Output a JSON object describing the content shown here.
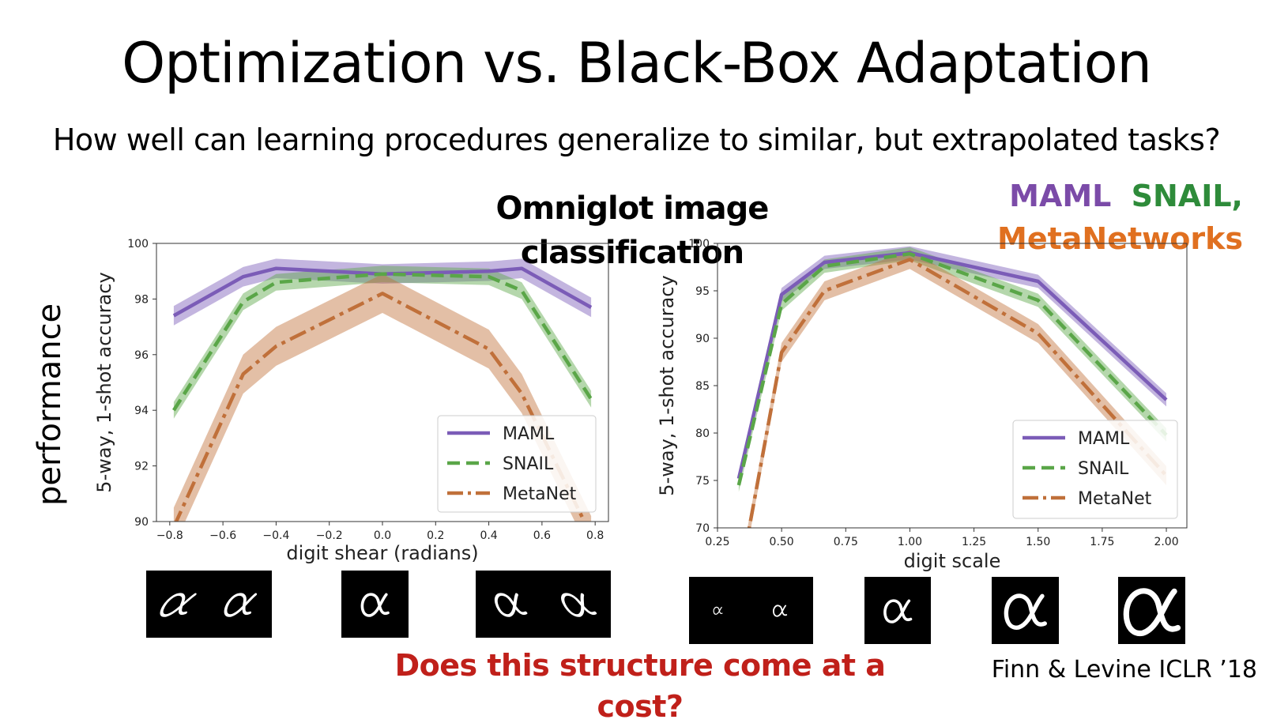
{
  "slide": {
    "title": "Optimization vs. Black-Box Adaptation",
    "subtitle": "How well can learning procedures generalize to similar, but extrapolated tasks?",
    "section_heading": "Omniglot image classification",
    "performance_label": "performance",
    "methods_legend": {
      "maml": "MAML",
      "snail": "SNAIL,",
      "metanetworks": "MetaNetworks"
    },
    "bottom_question": "Does this structure come at a cost?",
    "citation": "Finn & Levine ICLR ’18"
  },
  "colors": {
    "maml": "#7b5cb7",
    "snail": "#5aa648",
    "metanet": "#c0703a",
    "heading_purple": "#7b4ba8",
    "heading_green": "#2e8b3a",
    "heading_orange": "#e07020",
    "question_red": "#c0201a"
  },
  "icons": [
    "alpha-glyph-thumbnail"
  ],
  "chart_data": [
    {
      "type": "line",
      "xlabel": "digit shear (radians)",
      "ylabel": "5-way, 1-shot accuracy",
      "xlim": [
        -0.85,
        0.85
      ],
      "ylim": [
        90,
        100
      ],
      "xticks": [
        -0.8,
        -0.6,
        -0.4,
        -0.2,
        0.0,
        0.2,
        0.4,
        0.6,
        0.8
      ],
      "xtick_labels": [
        "−0.8",
        "−0.6",
        "−0.4",
        "−0.2",
        "0.0",
        "0.2",
        "0.4",
        "0.6",
        "0.8"
      ],
      "yticks": [
        90,
        92,
        94,
        96,
        98,
        100
      ],
      "ytick_labels": [
        "90",
        "92",
        "94",
        "96",
        "98",
        "100"
      ],
      "legend_position": "lower-right",
      "x": [
        -0.785,
        -0.524,
        -0.4,
        0.0,
        0.4,
        0.524,
        0.785
      ],
      "series": [
        {
          "name": "MAML",
          "key": "maml",
          "style": "solid",
          "values": [
            97.4,
            98.8,
            99.1,
            98.9,
            99.0,
            99.1,
            97.7
          ],
          "band": 0.35
        },
        {
          "name": "SNAIL",
          "key": "snail",
          "style": "dashed",
          "values": [
            94.0,
            97.9,
            98.6,
            98.9,
            98.8,
            98.3,
            94.4
          ],
          "band": 0.3
        },
        {
          "name": "MetaNet",
          "key": "metanet",
          "style": "dashdot",
          "values": [
            89.8,
            95.3,
            96.3,
            98.2,
            96.2,
            94.6,
            89.5
          ],
          "band": 0.7
        }
      ]
    },
    {
      "type": "line",
      "xlabel": "digit scale",
      "ylabel": "5-way, 1-shot accuracy",
      "xlim": [
        0.25,
        2.08
      ],
      "ylim": [
        70,
        100
      ],
      "xticks": [
        0.25,
        0.5,
        0.75,
        1.0,
        1.25,
        1.5,
        1.75,
        2.0
      ],
      "xtick_labels": [
        "0.25",
        "0.50",
        "0.75",
        "1.00",
        "1.25",
        "1.50",
        "1.75",
        "2.00"
      ],
      "yticks": [
        70,
        75,
        80,
        85,
        90,
        95,
        100
      ],
      "ytick_labels": [
        "70",
        "75",
        "80",
        "85",
        "90",
        "95",
        "100"
      ],
      "legend_position": "lower-right",
      "x": [
        0.333,
        0.5,
        0.667,
        1.0,
        1.5,
        2.0
      ],
      "series": [
        {
          "name": "MAML",
          "key": "maml",
          "style": "solid",
          "values": [
            75.2,
            94.6,
            98.0,
            99.0,
            96.0,
            83.5
          ],
          "band": 0.7
        },
        {
          "name": "SNAIL",
          "key": "snail",
          "style": "dashed",
          "values": [
            74.5,
            93.6,
            97.6,
            98.9,
            94.0,
            79.8
          ],
          "band": 0.7
        },
        {
          "name": "MetaNet",
          "key": "metanet",
          "style": "dashdot",
          "values": [
            64.0,
            88.5,
            95.0,
            98.3,
            90.5,
            75.5
          ],
          "band": 1.0
        }
      ]
    }
  ]
}
